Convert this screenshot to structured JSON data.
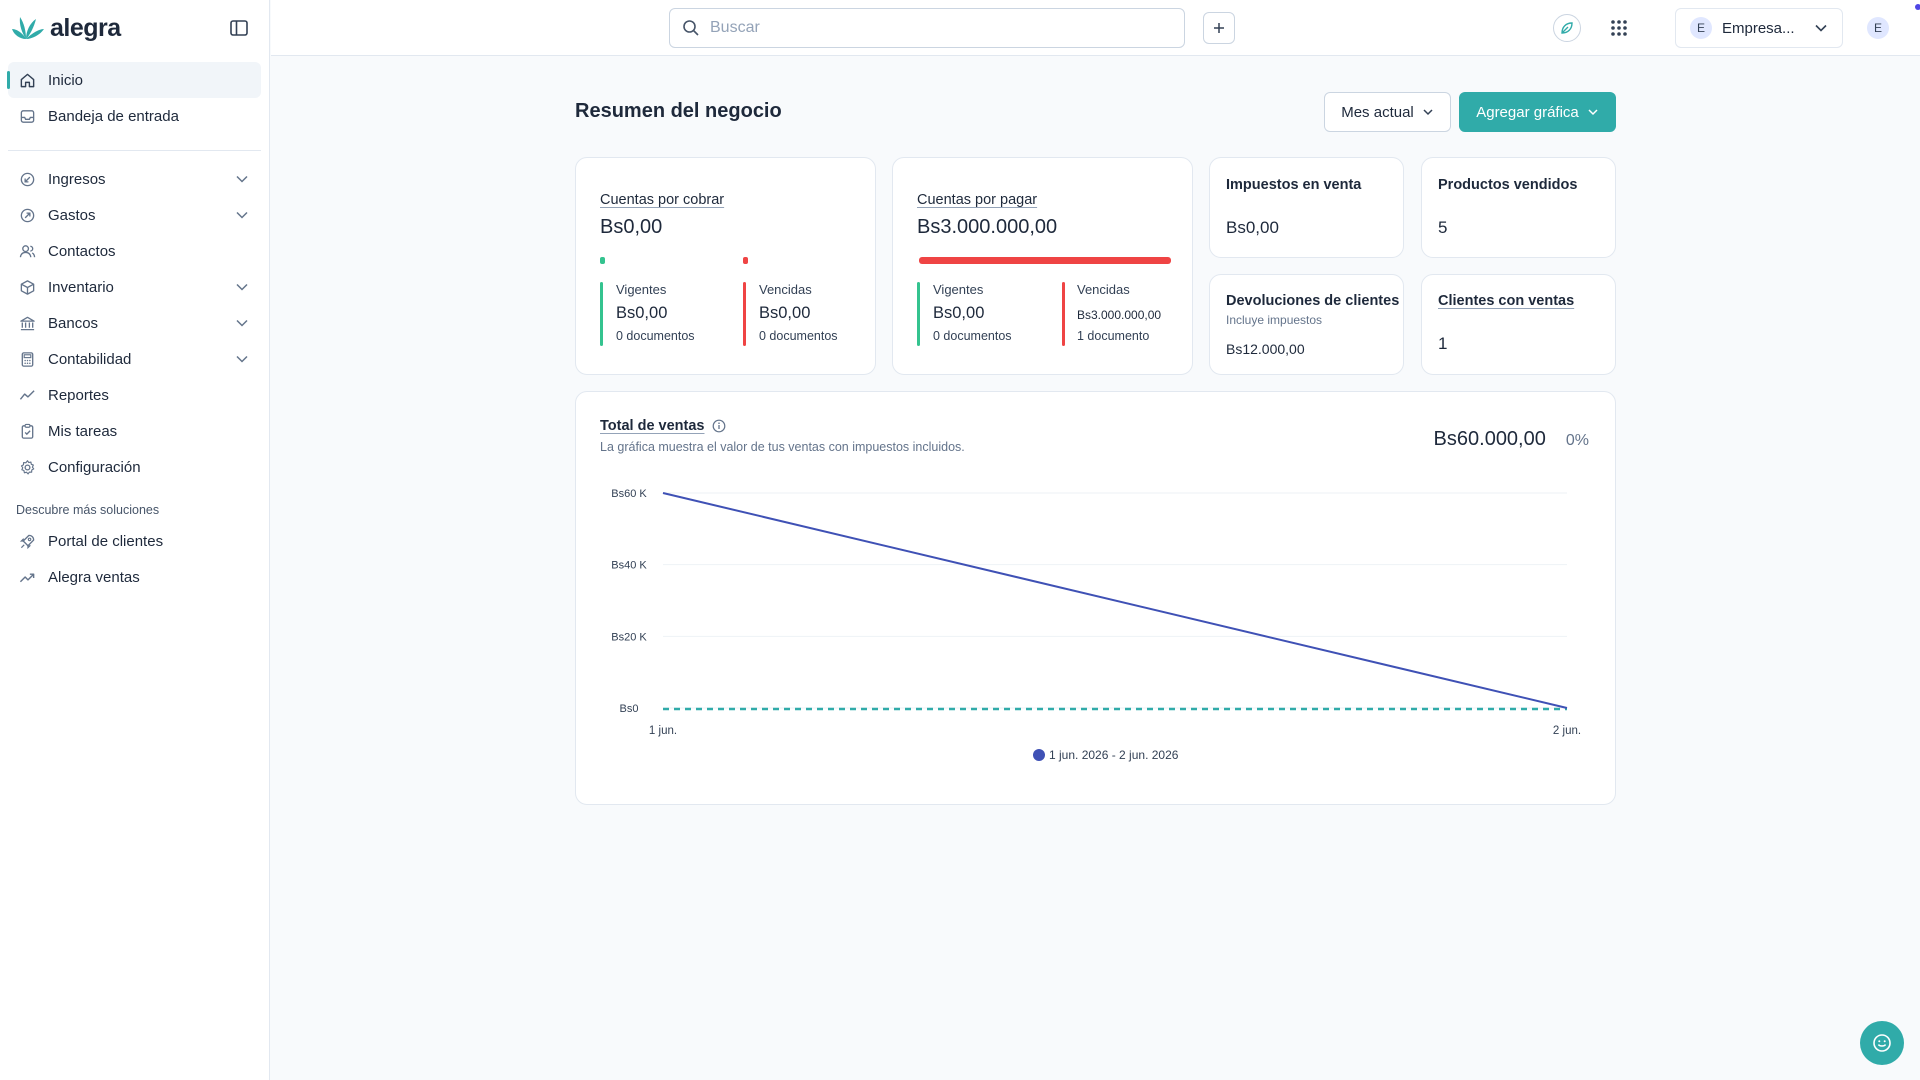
{
  "brand": {
    "name": "alegra",
    "accent": "#30aba9"
  },
  "sidebar": {
    "items": [
      {
        "label": "Inicio",
        "icon": "home-icon",
        "active": true
      },
      {
        "label": "Bandeja de entrada",
        "icon": "inbox-icon"
      }
    ],
    "groups": [
      {
        "label": "Ingresos",
        "icon": "income-icon",
        "expandable": true
      },
      {
        "label": "Gastos",
        "icon": "expense-icon",
        "expandable": true
      },
      {
        "label": "Contactos",
        "icon": "contacts-icon",
        "expandable": false
      },
      {
        "label": "Inventario",
        "icon": "box-icon",
        "expandable": true
      },
      {
        "label": "Bancos",
        "icon": "bank-icon",
        "expandable": true
      },
      {
        "label": "Contabilidad",
        "icon": "calculator-icon",
        "expandable": true
      },
      {
        "label": "Reportes",
        "icon": "chart-line-icon",
        "expandable": false
      },
      {
        "label": "Mis tareas",
        "icon": "clipboard-icon",
        "expandable": false
      },
      {
        "label": "Configuración",
        "icon": "gear-icon",
        "expandable": false
      }
    ],
    "more_title": "Descubre más soluciones",
    "more_items": [
      {
        "label": "Portal de clientes",
        "icon": "rocket-icon"
      },
      {
        "label": "Alegra ventas",
        "icon": "trend-up-icon"
      }
    ]
  },
  "topbar": {
    "search_placeholder": "Buscar",
    "company_initial": "E",
    "company_name": "Empresa...",
    "user_initial": "E"
  },
  "main": {
    "title": "Resumen del negocio",
    "period_button": "Mes actual",
    "add_chart_button": "Agregar gráfica"
  },
  "cards": {
    "receivable": {
      "title": "Cuentas por cobrar",
      "amount": "Bs0,00",
      "current_label": "Vigentes",
      "current_amount": "Bs0,00",
      "current_docs": "0 documentos",
      "overdue_label": "Vencidas",
      "overdue_amount": "Bs0,00",
      "overdue_docs": "0 documentos"
    },
    "payable": {
      "title": "Cuentas por pagar",
      "amount": "Bs3.000.000,00",
      "current_label": "Vigentes",
      "current_amount": "Bs0,00",
      "current_docs": "0 documentos",
      "overdue_label": "Vencidas",
      "overdue_amount": "Bs3.000.000,00",
      "overdue_docs": "1 documento"
    },
    "sales_tax": {
      "title": "Impuestos en venta",
      "value": "Bs0,00"
    },
    "products_sold": {
      "title": "Productos vendidos",
      "value": "5"
    },
    "returns": {
      "title": "Devoluciones de clientes",
      "subtitle": "Incluye impuestos",
      "value": "Bs12.000,00"
    },
    "clients_sales": {
      "title": "Clientes con ventas",
      "value": "1"
    }
  },
  "sales_chart": {
    "title": "Total de ventas",
    "description": "La gráfica muestra el valor de tus ventas con impuestos incluidos.",
    "total": "Bs60.000,00",
    "change": "0%",
    "colors": {
      "primary": "#3f51b5",
      "comparison": "#30aba9",
      "grid": "#eef2f6"
    }
  },
  "chart_data": {
    "type": "line",
    "categories": [
      "1 jun.",
      "2 jun."
    ],
    "series": [
      {
        "name": "1 jun. 2026 - 2 jun. 2026",
        "values": [
          60000,
          0
        ]
      },
      {
        "values": [
          0,
          0
        ]
      }
    ],
    "ylim": [
      0,
      60000
    ],
    "yticks": [
      {
        "value": 0,
        "label": "Bs0"
      },
      {
        "value": 20000,
        "label": "Bs20 K"
      },
      {
        "value": 40000,
        "label": "Bs40 K"
      },
      {
        "value": 60000,
        "label": "Bs60 K"
      }
    ],
    "grid": true,
    "legend": "bottom-center"
  }
}
